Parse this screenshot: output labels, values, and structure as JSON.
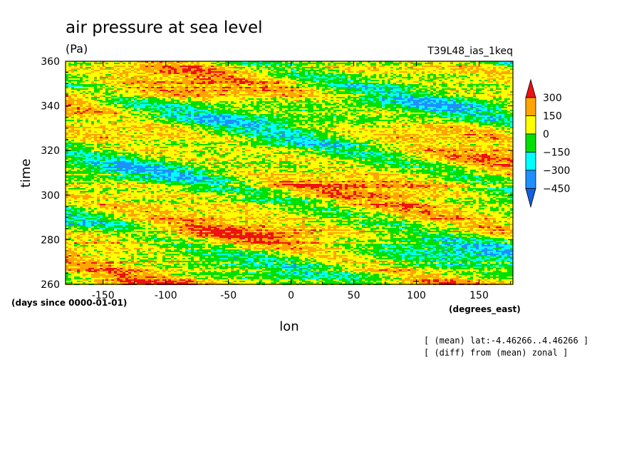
{
  "chart_data": {
    "type": "heatmap",
    "title": "air pressure at sea level",
    "units": "(Pa)",
    "experiment": "T39L48_ias_1keq",
    "xlabel": "lon",
    "xunits": "(degrees_east)",
    "ylabel": "time",
    "yunits": "(days since 0000-01-01)",
    "xlim": [
      -180,
      177
    ],
    "ylim": [
      260,
      360
    ],
    "x_ticks": [
      -150,
      -100,
      -50,
      0,
      50,
      100,
      150
    ],
    "y_ticks": [
      260,
      280,
      300,
      320,
      340,
      360
    ],
    "annotations": [
      "[ (mean) lat:-4.46266..4.46266 ]",
      "[ (diff) from (mean) zonal ]"
    ],
    "colorbar": {
      "labels": [
        "300",
        "150",
        "0",
        "−150",
        "−300",
        "−450"
      ],
      "levels": [
        300,
        150,
        0,
        -150,
        -300,
        -450
      ],
      "colors": [
        "#ee1111",
        "#ffa500",
        "#ffff00",
        "#00e000",
        "#00ffff",
        "#1e90ff",
        "#1060e0"
      ]
    },
    "colors": {
      "red": "#ee1111",
      "orange": "#ffa500",
      "yellow": "#ffff00",
      "green": "#00e000",
      "cyan": "#00ffff",
      "blue": "#1e90ff"
    }
  }
}
